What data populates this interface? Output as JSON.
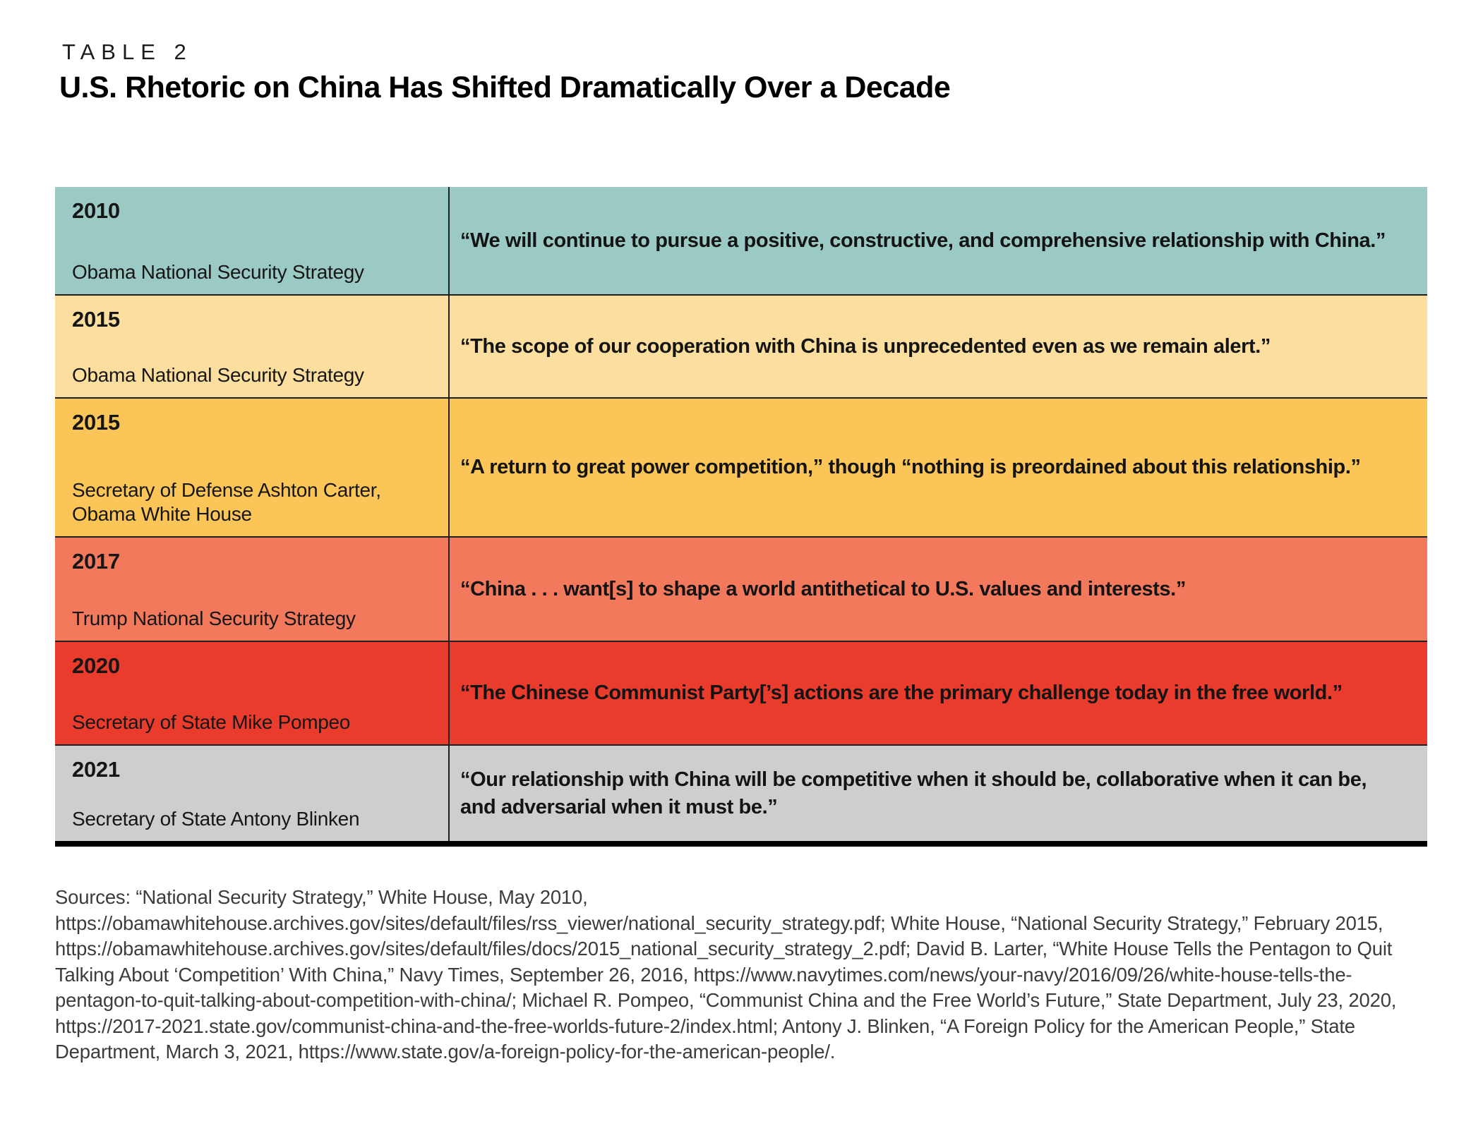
{
  "page": {
    "kicker": "TABLE 2",
    "title": "U.S. Rhetoric on China Has Shifted Dramatically Over a Decade"
  },
  "table": {
    "rows": [
      {
        "year": "2010",
        "source": "Obama National Security Strategy",
        "quote": "“We will continue to pursue a positive, constructive, and comprehensive relationship with China.”",
        "bg": "#9bc9c3"
      },
      {
        "year": "2015",
        "source": "Obama National Security Strategy",
        "quote": "“The scope of our cooperation with China is unprecedented even as we remain alert.”",
        "bg": "#fcdf9e"
      },
      {
        "year": "2015",
        "source": "Secretary of Defense Ashton Carter, Obama White House",
        "quote": "“A return to great power competition,” though “nothing is preordained about this relationship.”",
        "bg": "#fbc557"
      },
      {
        "year": "2017",
        "source": "Trump National Security Strategy",
        "quote": "“China . . . want[s] to shape a world antithetical to U.S. values and interests.”",
        "bg": "#f3795d"
      },
      {
        "year": "2020",
        "source": "Secretary of State Mike Pompeo",
        "quote": "“The Chinese Communist Party[’s] actions are the primary challenge today in the free world.”",
        "bg": "#e93c2d"
      },
      {
        "year": "2021",
        "source": "Secretary of State Antony Blinken",
        "quote": "“Our relationship with China will be competitive when it should be, collaborative when it can be, and adversarial when it must be.”",
        "bg": "#d0cecd"
      }
    ]
  },
  "sources_text": "Sources: “National Security Strategy,” White House, May 2010, https://obamawhitehouse.archives.gov/sites/default/files/rss_viewer/national_security_strategy.pdf; White House, “National Security Strategy,” February 2015, https://obamawhitehouse.archives.gov/sites/default/files/docs/2015_national_security_strategy_2.pdf; David B. Larter, “White House Tells the Pentagon to Quit Talking About ‘Competition’ With China,” Navy Times, September 26, 2016, https://www.navytimes.com/news/your-navy/2016/09/26/white-house-tells-the-pentagon-to-quit-talking-about-competition-with-china/; Michael R. Pompeo, “Communist China and the Free World’s Future,” State Department, July 23, 2020, https://2017-2021.state.gov/communist-china-and-the-free-worlds-future-2/index.html; Antony J. Blinken, “A Foreign Policy for the American People,” State Department, March 3, 2021, https://www.state.gov/a-foreign-policy-for-the-american-people/."
}
